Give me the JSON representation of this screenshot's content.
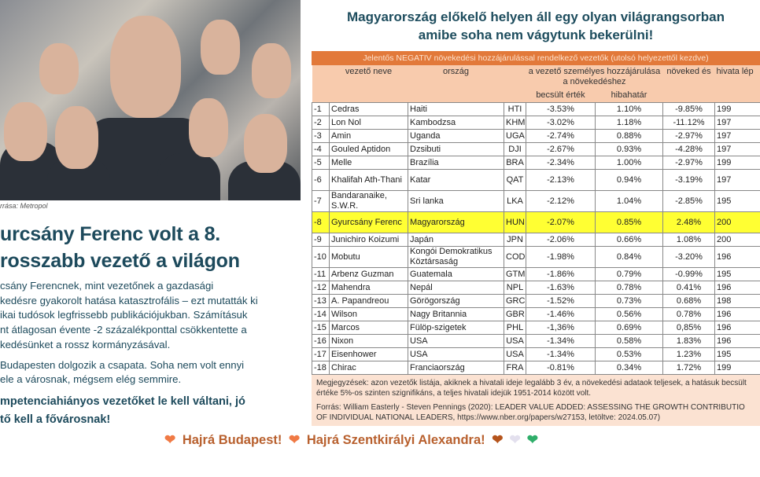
{
  "left": {
    "photo_caption": "rrása: Metropol",
    "headline": [
      "urcsány Ferenc volt a 8.",
      "rosszabb vezető a világon"
    ],
    "paragraphs": [
      [
        "csány Ferencnek, mint vezetőnek a gazdasági",
        "kedésre gyakorolt hatása katasztrofális – ezt mutatták ki",
        "ikai tudósok legfrissebb publikációjukban.  Számításuk",
        "nt átlagosan évente -2 százalékponttal csökkentette a",
        "kedésünket a rossz kormányzásával."
      ],
      [
        "Budapesten dolgozik a csapata. Soha nem volt ennyi",
        "ele a városnak, mégsem elég semmire."
      ]
    ],
    "cta": [
      "mpetenciahiányos vezetőket le kell váltani, jó",
      "tő kell a fővárosnak!"
    ]
  },
  "right": {
    "title": [
      "Magyarország előkelő helyen áll egy olyan világrangsorban",
      "amibe soha nem vágytunk bekerülni!"
    ],
    "banner": "Jelentős NEGATIV növekedési hozzájárulással rendelkező vezetők (utolsó helyezettől kezdve)",
    "headers": {
      "name": "vezető neve",
      "country": "ország",
      "contribution": "a vezető személyes hozzájárulása a növekedéshez",
      "estimate": "becsült érték",
      "margin": "hibahatár",
      "growth": "növeked és",
      "office": "hivata lép"
    },
    "rows": [
      {
        "rank": "-1",
        "name": "Cedras",
        "country": "Haiti",
        "code": "HTI",
        "est": "-3.53%",
        "err": "1.10%",
        "growth": "-9.85%",
        "year": "199"
      },
      {
        "rank": "-2",
        "name": "Lon Nol",
        "country": "Kambodzsa",
        "code": "KHM",
        "est": "-3.02%",
        "err": "1.18%",
        "growth": "-11.12%",
        "year": "197"
      },
      {
        "rank": "-3",
        "name": "Amin",
        "country": "Uganda",
        "code": "UGA",
        "est": "-2.74%",
        "err": "0.88%",
        "growth": "-2.97%",
        "year": "197"
      },
      {
        "rank": "-4",
        "name": "Gouled Aptidon",
        "country": "Dzsibuti",
        "code": "DJI",
        "est": "-2.67%",
        "err": "0.93%",
        "growth": "-4.28%",
        "year": "197"
      },
      {
        "rank": "-5",
        "name": "Melle",
        "country": "Brazília",
        "code": "BRA",
        "est": "-2.34%",
        "err": "1.00%",
        "growth": "-2.97%",
        "year": "199"
      },
      {
        "rank": "-6",
        "name": "Khalifah Ath-Thani",
        "country": "Katar",
        "code": "QAT",
        "est": "-2.13%",
        "err": "0.94%",
        "growth": "-3.19%",
        "year": "197",
        "tall": true
      },
      {
        "rank": "-7",
        "name": "Bandaranaike, S.W.R.",
        "country": "Sri lanka",
        "code": "LKA",
        "est": "-2.12%",
        "err": "1.04%",
        "growth": "-2.85%",
        "year": "195",
        "tall": true
      },
      {
        "rank": "-8",
        "name": "Gyurcsány Ferenc",
        "country": "Magyarország",
        "code": "HUN",
        "est": "-2.07%",
        "err": "0.85%",
        "growth": "2.48%",
        "year": "200",
        "tall": true,
        "highlight": true
      },
      {
        "rank": "-9",
        "name": "Junichiro Koizumi",
        "country": "Japán",
        "code": "JPN",
        "est": "-2.06%",
        "err": "0.66%",
        "growth": "1.08%",
        "year": "200"
      },
      {
        "rank": "-10",
        "name": "Mobutu",
        "country": "Kongói Demokratikus Köztársaság",
        "code": "COD",
        "est": "-1.98%",
        "err": "0.84%",
        "growth": "-3.20%",
        "year": "196",
        "tall": true
      },
      {
        "rank": "-11",
        "name": "Arbenz Guzman",
        "country": "Guatemala",
        "code": "GTM",
        "est": "-1.86%",
        "err": "0.79%",
        "growth": "-0.99%",
        "year": "195"
      },
      {
        "rank": "-12",
        "name": "Mahendra",
        "country": "Nepál",
        "code": "NPL",
        "est": "-1.63%",
        "err": "0.78%",
        "growth": "0.41%",
        "year": "196"
      },
      {
        "rank": "-13",
        "name": "A. Papandreou",
        "country": "Görögország",
        "code": "GRC",
        "est": "-1.52%",
        "err": "0.73%",
        "growth": "0.68%",
        "year": "198"
      },
      {
        "rank": "-14",
        "name": "Wilson",
        "country": "Nagy Britannia",
        "code": "GBR",
        "est": "-1.46%",
        "err": "0.56%",
        "growth": "0.78%",
        "year": "196"
      },
      {
        "rank": "-15",
        "name": "Marcos",
        "country": "Fülöp-szigetek",
        "code": "PHL",
        "est": "-1,36%",
        "err": "0.69%",
        "growth": "0,85%",
        "year": "196"
      },
      {
        "rank": "-16",
        "name": "Nixon",
        "country": "USA",
        "code": "USA",
        "est": "-1.34%",
        "err": "0.58%",
        "growth": "1.83%",
        "year": "196"
      },
      {
        "rank": "-17",
        "name": "Eisenhower",
        "country": "USA",
        "code": "USA",
        "est": "-1.34%",
        "err": "0.53%",
        "growth": "1.23%",
        "year": "195"
      },
      {
        "rank": "-18",
        "name": "Chirac",
        "country": "Franciaország",
        "code": "FRA",
        "est": "-0.81%",
        "err": "0.34%",
        "growth": "1.72%",
        "year": "199"
      }
    ],
    "notes": [
      "Megjegyzések: azon vezetők listája, akiknek a hivatali ideje legalább 3 év, a növekedési adataok teljesek, a hatásuk",
      "becsült értéke 5%-os szinten szignifikáns, a teljes hivatali idejük 1951-2014 között volt."
    ],
    "source": [
      "Forrás: William Easterly - Steven Pennings (2020): LEADER VALUE ADDED: ASSESSING THE GROWTH CONTRIBUTIO",
      "OF INDIVIDUAL NATIONAL LEADERS, https://www.nber.org/papers/w27153, letöltve: 2024.05.07)"
    ]
  },
  "footer": {
    "slogan1": "Hajrá Budapest!",
    "slogan2": "Hajrá Szentkirályi Alexandra!"
  },
  "colors": {
    "accent": "#e2793a",
    "header_bg": "#f8cbad",
    "highlight": "#ffff33",
    "text": "#1d4a5c",
    "footer": "#b8602e"
  }
}
